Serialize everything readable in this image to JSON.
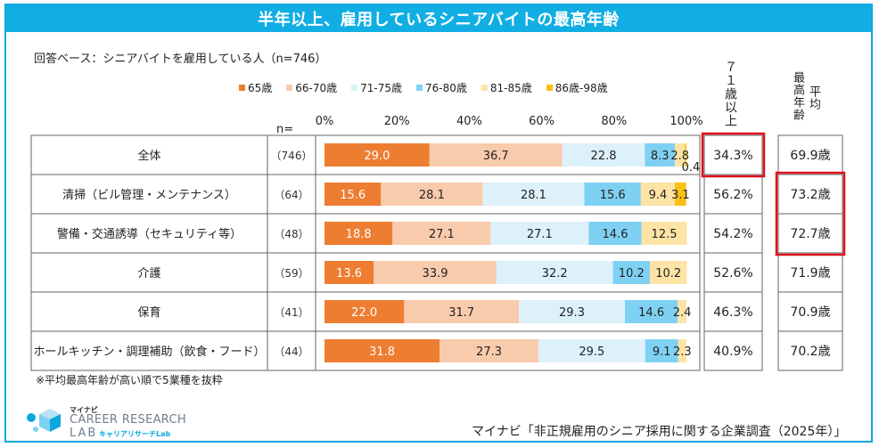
{
  "title": "半年以上、雇用しているシニアバイトの最高年齢",
  "base_note": "回答ベース：シニアバイトを雇用している人（n=746）",
  "n_header": "n=",
  "col_over71_header": "７１歳以上",
  "col_max_age_header_1": "最高年齢",
  "col_max_age_header_2": "平均",
  "footnote": "※平均最高年齢が高い順で5業種を抜粋",
  "source": "マイナビ「非正規雇用のシニア採用に関する企業調査（2025年）」",
  "logo": {
    "top": "マイナビ",
    "main": "CAREER RESEARCH",
    "lab": "LAB",
    "ja": "キャリアリサーチLab"
  },
  "colors": {
    "title_bg": "#11aee4",
    "frame": "#0aa7df",
    "highlight": "#e0121b"
  },
  "chart_data": {
    "type": "bar",
    "orientation": "horizontal-stacked-100",
    "x_ticks": [
      "0%",
      "20%",
      "40%",
      "60%",
      "80%",
      "100%"
    ],
    "xlim": [
      0,
      100
    ],
    "legend_position": "top",
    "series": [
      {
        "name": "65歳",
        "color": "#ed7d31",
        "label_color": "#ffffff"
      },
      {
        "name": "66-70歳",
        "color": "#f8cbad",
        "label_color": "#222222"
      },
      {
        "name": "71-75歳",
        "color": "#ddf1fb",
        "label_color": "#222222"
      },
      {
        "name": "76-80歳",
        "color": "#7fd1f4",
        "label_color": "#222222"
      },
      {
        "name": "81-85歳",
        "color": "#fde4a6",
        "label_color": "#222222"
      },
      {
        "name": "86歳-98歳",
        "color": "#fbbf16",
        "label_color": "#222222"
      }
    ],
    "rows": [
      {
        "category": "全体",
        "n": "（746）",
        "values": [
          29.0,
          36.7,
          22.8,
          8.3,
          2.8,
          0.4
        ],
        "labels": [
          "29.0",
          "36.7",
          "22.8",
          "8.3",
          "2.8",
          "0.4"
        ],
        "over71": "34.3%",
        "avg_max_age": "69.9歳",
        "over71_highlight": true,
        "avg_highlight": false
      },
      {
        "category": "清掃（ビル管理・メンテナンス）",
        "n": "（64）",
        "values": [
          15.6,
          28.1,
          28.1,
          15.6,
          9.4,
          3.1
        ],
        "labels": [
          "15.6",
          "28.1",
          "28.1",
          "15.6",
          "9.4",
          "3.1"
        ],
        "over71": "56.2%",
        "avg_max_age": "73.2歳",
        "over71_highlight": false,
        "avg_highlight": true
      },
      {
        "category": "警備・交通誘導（セキュリティ等）",
        "n": "（48）",
        "values": [
          18.8,
          27.1,
          27.1,
          14.6,
          12.5,
          0
        ],
        "labels": [
          "18.8",
          "27.1",
          "27.1",
          "14.6",
          "12.5",
          ""
        ],
        "over71": "54.2%",
        "avg_max_age": "72.7歳",
        "over71_highlight": false,
        "avg_highlight": true
      },
      {
        "category": "介護",
        "n": "（59）",
        "values": [
          13.6,
          33.9,
          32.2,
          10.2,
          10.2,
          0
        ],
        "labels": [
          "13.6",
          "33.9",
          "32.2",
          "10.2",
          "10.2",
          ""
        ],
        "over71": "52.6%",
        "avg_max_age": "71.9歳",
        "over71_highlight": false,
        "avg_highlight": false
      },
      {
        "category": "保育",
        "n": "（41）",
        "values": [
          22.0,
          31.7,
          29.3,
          14.6,
          2.4,
          0
        ],
        "labels": [
          "22.0",
          "31.7",
          "29.3",
          "14.6",
          "2.4",
          ""
        ],
        "over71": "46.3%",
        "avg_max_age": "70.9歳",
        "over71_highlight": false,
        "avg_highlight": false
      },
      {
        "category": "ホールキッチン・調理補助（飲食・フード）",
        "n": "（44）",
        "values": [
          31.8,
          27.3,
          29.5,
          9.1,
          2.3,
          0
        ],
        "labels": [
          "31.8",
          "27.3",
          "29.5",
          "9.1",
          "2.3",
          ""
        ],
        "over71": "40.9%",
        "avg_max_age": "70.2歳",
        "over71_highlight": false,
        "avg_highlight": false
      }
    ]
  }
}
